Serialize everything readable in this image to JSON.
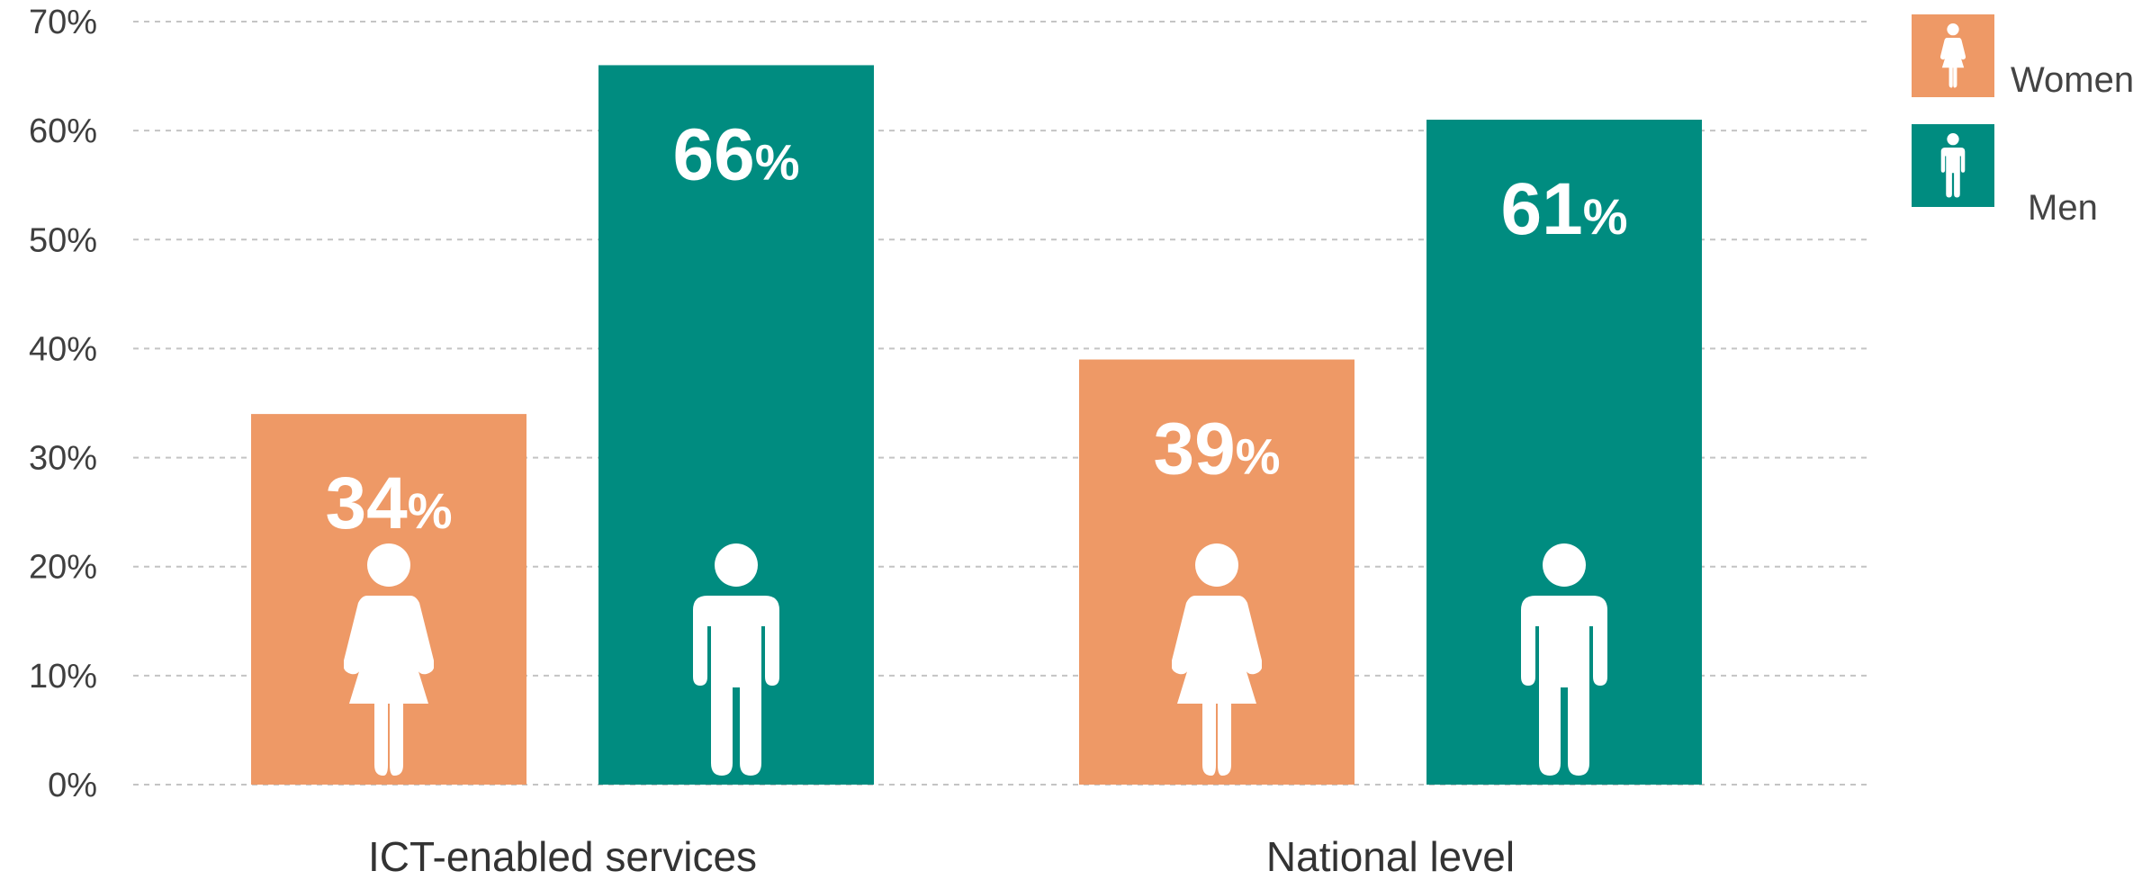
{
  "chart_data": {
    "type": "bar",
    "categories": [
      "ICT-enabled services",
      "National level"
    ],
    "series": [
      {
        "name": "Women",
        "values": [
          34,
          39
        ],
        "color": "#EE9966",
        "icon": "woman-icon"
      },
      {
        "name": "Men",
        "values": [
          66,
          61
        ],
        "color": "#008C80",
        "icon": "man-icon"
      }
    ],
    "ylim": [
      0,
      70
    ],
    "yticks": [
      "0%",
      "10%",
      "20%",
      "30%",
      "40%",
      "50%",
      "60%",
      "70%"
    ],
    "value_suffix": "%",
    "grid": true,
    "legend": "top-right"
  }
}
